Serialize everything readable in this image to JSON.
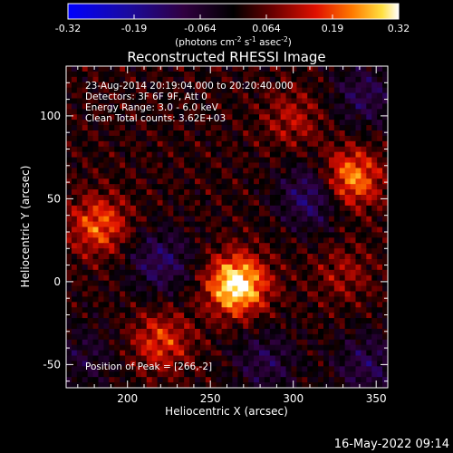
{
  "chart_data": {
    "type": "heatmap",
    "title": "Reconstructed RHESSI Image",
    "xlabel": "Heliocentric X (arcsec)",
    "ylabel": "Heliocentric Y (arcsec)",
    "xlim": [
      163,
      357
    ],
    "ylim": [
      -64,
      130
    ],
    "x_ticks": [
      200,
      250,
      300,
      350
    ],
    "y_ticks": [
      -50,
      0,
      50,
      100
    ],
    "colorbar": {
      "label_pre": "(photons cm",
      "sup1": "-2",
      "mid1": " s",
      "sup2": "-1",
      "mid2": " asec",
      "sup3": "-2",
      "label_post": ")",
      "ticks": [
        "-0.32",
        "-0.19",
        "-0.064",
        "0.064",
        "0.19",
        "0.32"
      ],
      "vmin": -0.32,
      "vmax": 0.32,
      "colormap": "IDL blue-black-red-yellow-white"
    },
    "annotations": [
      "23-Aug-2014 20:19:04.000 to 20:20:40.000",
      "Detectors: 3F 6F 9F, Att 0",
      "Energy Range: 3.0 - 6.0 keV",
      "Clean     Total counts: 3.62E+03"
    ],
    "peak_label": "Position of Peak = [266,-2]",
    "peak_position": [
      266,
      -2
    ],
    "sources": [
      {
        "x": 266,
        "y": -2,
        "amplitude": 0.32
      },
      {
        "x": 334,
        "y": 62,
        "amplitude": 0.24
      },
      {
        "x": 183,
        "y": 34,
        "amplitude": 0.18
      },
      {
        "x": 220,
        "y": -36,
        "amplitude": 0.15
      },
      {
        "x": 300,
        "y": 98,
        "amplitude": 0.1
      },
      {
        "x": 330,
        "y": 5,
        "amplitude": 0.08
      }
    ],
    "negative_regions": [
      {
        "x": 312,
        "y": 52,
        "amplitude": -0.17
      },
      {
        "x": 220,
        "y": 12,
        "amplitude": -0.14
      },
      {
        "x": 343,
        "y": 112,
        "amplitude": -0.12
      },
      {
        "x": 345,
        "y": -50,
        "amplitude": -0.12
      },
      {
        "x": 283,
        "y": -48,
        "amplitude": -0.11
      },
      {
        "x": 175,
        "y": -45,
        "amplitude": -0.08
      }
    ]
  },
  "footer_timestamp": "16-May-2022 09:14"
}
